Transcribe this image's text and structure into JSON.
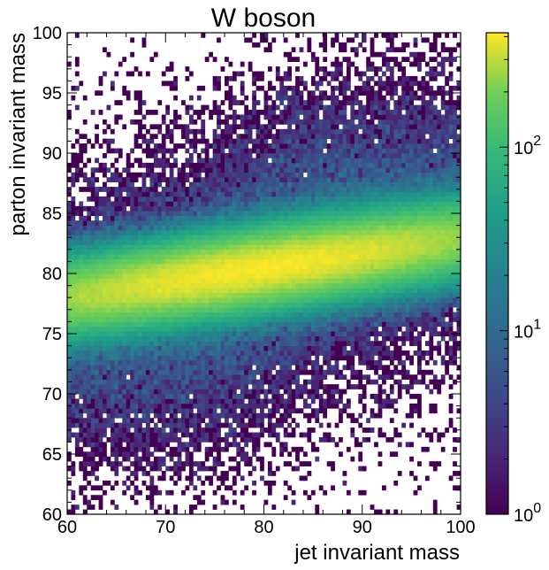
{
  "chart_data": {
    "type": "heatmap",
    "title": "W boson",
    "xlabel": "jet invariant mass",
    "ylabel": "parton invariant mass",
    "xlim": [
      60,
      100
    ],
    "ylim": [
      60,
      100
    ],
    "xticks": [
      60,
      70,
      80,
      90,
      100
    ],
    "yticks": [
      60,
      65,
      70,
      75,
      80,
      85,
      90,
      95,
      100
    ],
    "x_tick_labels": [
      "60",
      "70",
      "80",
      "90",
      "100"
    ],
    "y_tick_labels": [
      "60",
      "65",
      "70",
      "75",
      "80",
      "85",
      "90",
      "95",
      "100"
    ],
    "bins": {
      "x": 100,
      "y": 100
    },
    "z_scale": "log",
    "zlim": [
      1,
      420
    ],
    "colormap": "viridis",
    "colorbar": {
      "position": "right",
      "ticks": [
        {
          "value": 1,
          "base": "10",
          "exp": "0"
        },
        {
          "value": 10,
          "base": "10",
          "exp": "1"
        },
        {
          "value": 100,
          "base": "10",
          "exp": "2"
        }
      ]
    },
    "density_model": {
      "peak_count": 400,
      "peak_x": 79.5,
      "peak_y": 80.4,
      "sigma_x": 20,
      "sigma_y_core": 1.9,
      "sigma_y_tail": 6.5,
      "tail_weight": 0.02,
      "correlation_slope": 0.35,
      "description_none": ""
    },
    "grid": false
  }
}
